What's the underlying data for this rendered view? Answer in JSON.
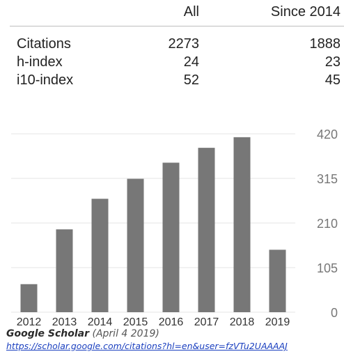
{
  "stats": {
    "columns": [
      "All",
      "Since 2014"
    ],
    "rows": [
      {
        "label": "Citations",
        "all": "2273",
        "since": "1888"
      },
      {
        "label": "h-index",
        "all": "24",
        "since": "23"
      },
      {
        "label": "i10-index",
        "all": "52",
        "since": "45"
      }
    ]
  },
  "chart_data": {
    "type": "bar",
    "categories": [
      "2012",
      "2013",
      "2014",
      "2015",
      "2016",
      "2017",
      "2018",
      "2019"
    ],
    "values": [
      66,
      195,
      267,
      314,
      352,
      387,
      412,
      147
    ],
    "yticks": [
      0,
      105,
      210,
      315,
      420
    ],
    "ylim": [
      0,
      420
    ],
    "grid": true,
    "y_axis_side": "right",
    "bar_color": "#777777"
  },
  "footer": {
    "source_name": "Google Scholar",
    "source_date": "(April 4 2019)",
    "url": "https://scholar.google.com/citations?hl=en&user=fzVTu2UAAAAJ"
  }
}
